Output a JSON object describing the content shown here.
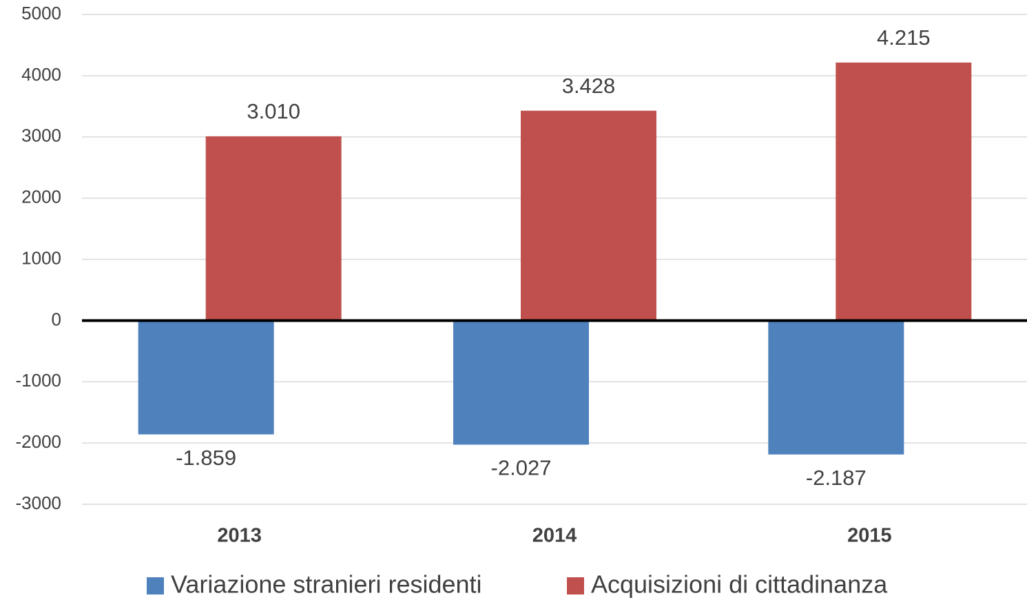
{
  "chart_data": {
    "type": "bar",
    "categories": [
      "2013",
      "2014",
      "2015"
    ],
    "series": [
      {
        "name": "Variazione stranieri residenti",
        "color": "#4f81bd",
        "values": [
          -1859,
          -2027,
          -2187
        ],
        "value_labels": [
          "-1.859",
          "-2.027",
          "-2.187"
        ]
      },
      {
        "name": "Acquisizioni di cittadinanza",
        "color": "#c0504d",
        "values": [
          3010,
          3428,
          4215
        ],
        "value_labels": [
          "3.010",
          "3.428",
          "4.215"
        ]
      }
    ],
    "ylim": [
      -3000,
      5000
    ],
    "yticks": [
      -3000,
      -2000,
      -1000,
      0,
      1000,
      2000,
      3000,
      4000,
      5000
    ],
    "grid": true,
    "legend": "bottom"
  }
}
